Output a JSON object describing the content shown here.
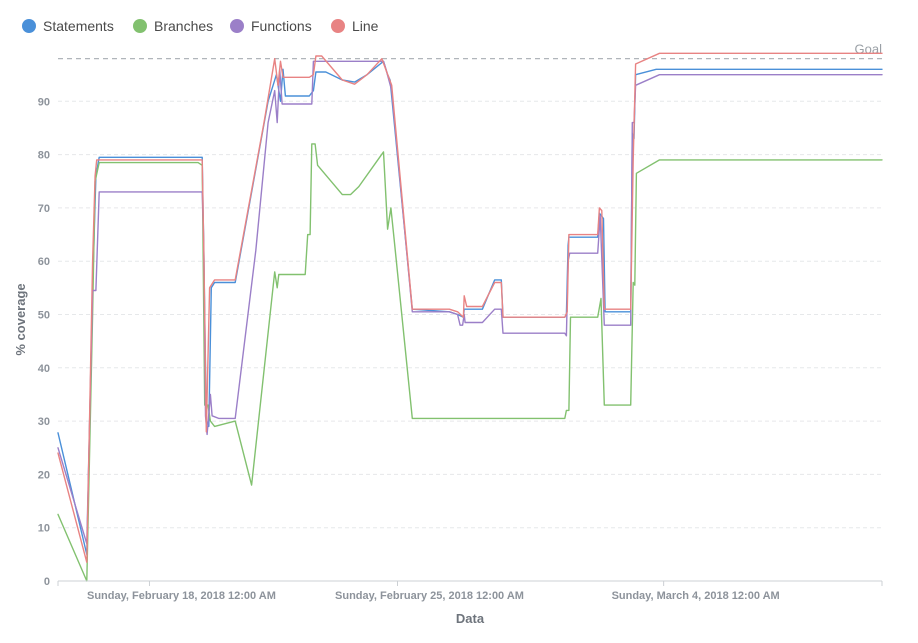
{
  "chart_data": {
    "type": "line",
    "title": "",
    "xlabel": "Data",
    "ylabel": "% coverage",
    "ylim": [
      0,
      100
    ],
    "xlim": [
      0,
      100
    ],
    "y_ticks": [
      0,
      10,
      20,
      30,
      40,
      50,
      60,
      70,
      80,
      90
    ],
    "x_ticks": [
      {
        "value": 11.1,
        "label": "Sunday, February 18, 2018 12:00 AM"
      },
      {
        "value": 41.2,
        "label": "Sunday, February 25, 2018 12:00 AM"
      },
      {
        "value": 73.5,
        "label": "Sunday, March 4, 2018 12:00 AM"
      }
    ],
    "goal": {
      "value": 98,
      "label": "Goal"
    },
    "grid": "horizontal-dashed",
    "legend_position": "top-left",
    "series": [
      {
        "name": "Statements",
        "color": "#4a90d9",
        "points": [
          [
            0,
            27.8
          ],
          [
            3.5,
            5
          ],
          [
            4.2,
            55
          ],
          [
            4.6,
            76
          ],
          [
            5,
            79.5
          ],
          [
            17.5,
            79.5
          ],
          [
            17.7,
            62
          ],
          [
            18,
            30
          ],
          [
            18.3,
            29
          ],
          [
            18.6,
            55
          ],
          [
            19,
            56
          ],
          [
            21.5,
            56
          ],
          [
            25.5,
            90
          ],
          [
            26.5,
            95
          ],
          [
            27,
            90
          ],
          [
            27.3,
            96
          ],
          [
            27.6,
            91
          ],
          [
            30.5,
            91
          ],
          [
            31,
            92
          ],
          [
            31.3,
            95.5
          ],
          [
            32.5,
            95.5
          ],
          [
            34.5,
            94
          ],
          [
            36,
            93.6
          ],
          [
            37.5,
            95
          ],
          [
            39.5,
            97.5
          ],
          [
            40,
            95
          ],
          [
            40.3,
            94
          ],
          [
            43,
            51
          ],
          [
            47.5,
            50.5
          ],
          [
            48.5,
            50
          ],
          [
            49.2,
            49.5
          ],
          [
            49.3,
            51
          ],
          [
            51.5,
            51
          ],
          [
            53,
            56.5
          ],
          [
            53.8,
            56.5
          ],
          [
            54,
            49.5
          ],
          [
            61.5,
            49.5
          ],
          [
            61.7,
            50
          ],
          [
            61.9,
            63
          ],
          [
            62,
            64.5
          ],
          [
            65.5,
            64.5
          ],
          [
            65.7,
            69
          ],
          [
            66.2,
            68
          ],
          [
            66.4,
            50.5
          ],
          [
            69.5,
            50.5
          ],
          [
            69.7,
            84
          ],
          [
            69.9,
            83
          ],
          [
            70.1,
            95
          ],
          [
            72.6,
            96
          ],
          [
            100,
            96
          ]
        ]
      },
      {
        "name": "Branches",
        "color": "#82c16f",
        "points": [
          [
            0,
            12.5
          ],
          [
            3.5,
            0
          ],
          [
            4.2,
            50
          ],
          [
            4.5,
            75
          ],
          [
            5,
            78.5
          ],
          [
            17,
            78.5
          ],
          [
            17.5,
            78
          ],
          [
            17.8,
            33
          ],
          [
            18.2,
            33
          ],
          [
            18.5,
            30
          ],
          [
            19,
            29
          ],
          [
            21.5,
            30
          ],
          [
            23.5,
            18
          ],
          [
            26.3,
            58
          ],
          [
            26.6,
            55
          ],
          [
            26.8,
            57.5
          ],
          [
            30,
            57.5
          ],
          [
            30.3,
            65
          ],
          [
            30.6,
            65
          ],
          [
            30.8,
            82
          ],
          [
            31.2,
            82
          ],
          [
            31.5,
            78
          ],
          [
            34.5,
            72.5
          ],
          [
            35.5,
            72.5
          ],
          [
            36.5,
            74
          ],
          [
            39.5,
            80.5
          ],
          [
            40,
            66
          ],
          [
            40.4,
            70
          ],
          [
            40.8,
            64
          ],
          [
            43,
            30.5
          ],
          [
            61.5,
            30.5
          ],
          [
            61.7,
            32
          ],
          [
            62,
            32
          ],
          [
            62.2,
            49.5
          ],
          [
            65.5,
            49.5
          ],
          [
            65.9,
            53
          ],
          [
            66.3,
            33
          ],
          [
            69.5,
            33
          ],
          [
            69.8,
            56
          ],
          [
            70,
            55.5
          ],
          [
            70.2,
            76.5
          ],
          [
            73,
            79
          ],
          [
            100,
            79
          ]
        ]
      },
      {
        "name": "Functions",
        "color": "#9b7fc8",
        "points": [
          [
            0,
            25
          ],
          [
            3.5,
            7
          ],
          [
            4.2,
            54.5
          ],
          [
            4.6,
            54.5
          ],
          [
            5,
            73
          ],
          [
            17.5,
            73
          ],
          [
            17.7,
            63
          ],
          [
            17.9,
            31
          ],
          [
            18.1,
            27.5
          ],
          [
            18.5,
            35
          ],
          [
            18.7,
            31
          ],
          [
            19.5,
            30.5
          ],
          [
            21.5,
            30.5
          ],
          [
            24,
            62
          ],
          [
            25.5,
            86
          ],
          [
            26.3,
            92
          ],
          [
            26.6,
            86
          ],
          [
            26.9,
            96
          ],
          [
            27.2,
            89.5
          ],
          [
            30.8,
            89.5
          ],
          [
            31,
            97.5
          ],
          [
            39.5,
            97.5
          ],
          [
            39.8,
            96
          ],
          [
            40.5,
            92
          ],
          [
            43,
            50.5
          ],
          [
            47.5,
            50.5
          ],
          [
            48.5,
            50
          ],
          [
            48.8,
            48
          ],
          [
            49.1,
            48
          ],
          [
            49.3,
            50
          ],
          [
            49.4,
            48.5
          ],
          [
            51.5,
            48.5
          ],
          [
            53,
            51
          ],
          [
            53.8,
            51
          ],
          [
            54,
            46.5
          ],
          [
            61.5,
            46.5
          ],
          [
            61.7,
            46
          ],
          [
            61.9,
            60
          ],
          [
            62.1,
            61.5
          ],
          [
            65.5,
            61.5
          ],
          [
            65.8,
            68.5
          ],
          [
            66.3,
            48
          ],
          [
            69.5,
            48
          ],
          [
            69.7,
            86
          ],
          [
            69.9,
            86
          ],
          [
            70.1,
            93
          ],
          [
            73,
            95
          ],
          [
            100,
            95
          ]
        ]
      },
      {
        "name": "Line",
        "color": "#e88383",
        "points": [
          [
            0,
            24
          ],
          [
            3.5,
            3.5
          ],
          [
            4.2,
            60
          ],
          [
            4.5,
            76
          ],
          [
            4.7,
            79
          ],
          [
            17.5,
            79
          ],
          [
            17.7,
            62
          ],
          [
            18,
            28
          ],
          [
            18.4,
            55
          ],
          [
            19,
            56.5
          ],
          [
            21.5,
            56.5
          ],
          [
            25,
            86
          ],
          [
            26.3,
            98
          ],
          [
            26.7,
            93
          ],
          [
            27,
            97.5
          ],
          [
            27.3,
            94.5
          ],
          [
            30.5,
            94.5
          ],
          [
            31,
            95
          ],
          [
            31.3,
            98.5
          ],
          [
            32,
            98.5
          ],
          [
            34.5,
            94
          ],
          [
            36,
            93.2
          ],
          [
            37.5,
            95
          ],
          [
            39.3,
            98
          ],
          [
            40.5,
            93
          ],
          [
            43,
            51
          ],
          [
            47.5,
            51
          ],
          [
            48.5,
            50.5
          ],
          [
            49.2,
            49.5
          ],
          [
            49.3,
            53.5
          ],
          [
            49.6,
            51.5
          ],
          [
            51.5,
            51.5
          ],
          [
            53,
            56
          ],
          [
            53.8,
            56
          ],
          [
            54,
            49.5
          ],
          [
            61.5,
            49.5
          ],
          [
            61.8,
            50.5
          ],
          [
            62,
            65
          ],
          [
            65.5,
            65
          ],
          [
            65.7,
            70
          ],
          [
            66,
            69.5
          ],
          [
            66.3,
            51
          ],
          [
            69.5,
            51
          ],
          [
            69.8,
            79
          ],
          [
            70.1,
            97
          ],
          [
            73,
            99
          ],
          [
            100,
            99
          ]
        ]
      }
    ]
  }
}
